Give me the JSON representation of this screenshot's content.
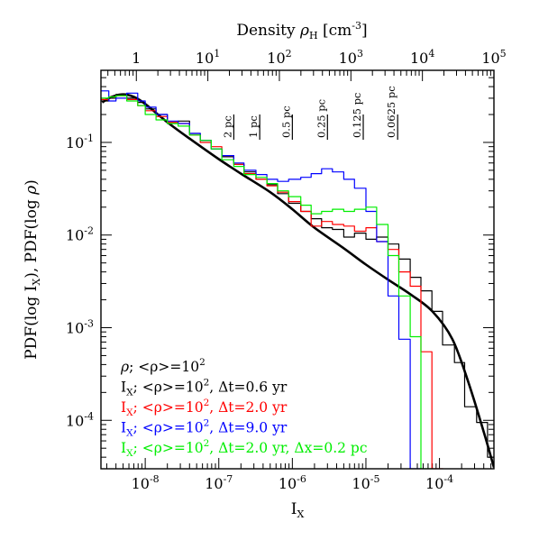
{
  "chart_data": {
    "type": "line",
    "xlabel": "I",
    "xlabel_sub": "X",
    "ylabel_parts": [
      "PDF(log I",
      "X",
      "), PDF(log ",
      "ρ",
      ")"
    ],
    "top_axis_label": "Density ",
    "top_axis_label_symbol": "ρ",
    "top_axis_label_sub": "H",
    "top_axis_unit": " [cm",
    "top_axis_unit_sup": "-3",
    "top_axis_unit_close": "]",
    "x_scale": "log",
    "y_scale": "log",
    "xlim": [
      2.5e-09,
      0.00055
    ],
    "ylim": [
      3e-05,
      0.6
    ],
    "top_xlim": [
      0.32,
      100000
    ],
    "x_ticks": [
      {
        "value": 1e-08,
        "base": "10",
        "exp": "-8"
      },
      {
        "value": 1e-07,
        "base": "10",
        "exp": "-7"
      },
      {
        "value": 1e-06,
        "base": "10",
        "exp": "-6"
      },
      {
        "value": 1e-05,
        "base": "10",
        "exp": "-5"
      },
      {
        "value": 0.0001,
        "base": "10",
        "exp": "-4"
      }
    ],
    "y_ticks": [
      {
        "value": 0.1,
        "base": "10",
        "exp": "-1"
      },
      {
        "value": 0.01,
        "base": "10",
        "exp": "-2"
      },
      {
        "value": 0.001,
        "base": "10",
        "exp": "-3"
      },
      {
        "value": 0.0001,
        "base": "10",
        "exp": "-4"
      }
    ],
    "top_ticks": [
      {
        "value": 1,
        "base": "1",
        "exp": ""
      },
      {
        "value": 10,
        "base": "10",
        "exp": "1"
      },
      {
        "value": 100,
        "base": "10",
        "exp": "2"
      },
      {
        "value": 1000,
        "base": "10",
        "exp": "3"
      },
      {
        "value": 10000,
        "base": "10",
        "exp": "4"
      },
      {
        "value": 100000,
        "base": "10",
        "exp": "5"
      }
    ],
    "scale_markers": [
      {
        "label": "2 pc",
        "x": 1.6e-07
      },
      {
        "label": "1 pc",
        "x": 3.6e-07
      },
      {
        "label": "0.5 pc",
        "x": 1e-06
      },
      {
        "label": "0.25 pc",
        "x": 3e-06
      },
      {
        "label": "0.125 pc",
        "x": 9.2e-06
      },
      {
        "label": "0.0625 pc",
        "x": 2.7e-05
      }
    ],
    "series": [
      {
        "style": "smooth",
        "color": "#000000",
        "width": 2.6,
        "legend": {
          "sym": "ρ",
          "sub": "",
          "text": "; <ρ>=10",
          "sup": "2",
          "tail": ""
        },
        "x": [
          2.6e-09,
          3.5e-09,
          5e-09,
          7e-09,
          1e-08,
          2e-08,
          4e-08,
          1e-07,
          2e-07,
          5e-07,
          1e-06,
          2e-06,
          5e-06,
          1e-05,
          2e-05,
          4e-05,
          8e-05,
          0.00015,
          0.00025,
          0.0004,
          0.00055
        ],
        "y": [
          0.27,
          0.31,
          0.33,
          0.31,
          0.26,
          0.165,
          0.11,
          0.066,
          0.046,
          0.029,
          0.019,
          0.012,
          0.0072,
          0.0048,
          0.0033,
          0.0023,
          0.0015,
          0.00075,
          0.00025,
          7.5e-05,
          3.1e-05
        ]
      },
      {
        "style": "step",
        "color": "#000000",
        "width": 1.2,
        "legend": {
          "sym": "",
          "sub": "X",
          "text": "; <ρ>=10",
          "sup": "2",
          "tail": ", Δt=0.6 yr"
        },
        "x": [
          2.5e-09,
          3.2e-09,
          4e-09,
          5.6e-09,
          7.9e-09,
          1e-08,
          1.4e-08,
          2e-08,
          2.8e-08,
          4e-08,
          5.6e-08,
          7.9e-08,
          1.1e-07,
          1.6e-07,
          2.2e-07,
          3.2e-07,
          4.5e-07,
          6.3e-07,
          8.9e-07,
          1.3e-06,
          1.8e-06,
          2.5e-06,
          3.5e-06,
          5e-06,
          7e-06,
          1e-05,
          1.4e-05,
          2e-05,
          2.8e-05,
          4e-05,
          5.6e-05,
          7.9e-05,
          0.00011,
          0.00016,
          0.00022,
          0.00032,
          0.00045
        ],
        "y": [
          0.28,
          0.3,
          0.33,
          0.3,
          0.27,
          0.23,
          0.2,
          0.16,
          0.17,
          0.125,
          0.105,
          0.085,
          0.07,
          0.058,
          0.048,
          0.04,
          0.035,
          0.028,
          0.022,
          0.018,
          0.015,
          0.012,
          0.0115,
          0.0095,
          0.0105,
          0.009,
          0.0095,
          0.008,
          0.0055,
          0.0035,
          0.0025,
          0.0015,
          0.00065,
          0.00042,
          0.00014,
          9.5e-05,
          4e-05
        ]
      },
      {
        "style": "step",
        "color": "#ff0000",
        "width": 1.2,
        "legend": {
          "sym": "",
          "sub": "X",
          "text": "; <ρ>=10",
          "sup": "2",
          "tail": ", Δt=2.0 yr"
        },
        "x": [
          2.5e-09,
          3.2e-09,
          4e-09,
          5.6e-09,
          7.9e-09,
          1e-08,
          1.4e-08,
          2e-08,
          2.8e-08,
          4e-08,
          5.6e-08,
          7.9e-08,
          1.1e-07,
          1.6e-07,
          2.2e-07,
          3.2e-07,
          4.5e-07,
          6.3e-07,
          8.9e-07,
          1.3e-06,
          1.8e-06,
          2.5e-06,
          3.5e-06,
          5e-06,
          7e-06,
          1e-05,
          1.4e-05,
          2e-05,
          2.8e-05,
          4e-05,
          5.6e-05,
          7.9e-05
        ],
        "y": [
          0.29,
          0.31,
          0.32,
          0.29,
          0.25,
          0.22,
          0.19,
          0.165,
          0.16,
          0.12,
          0.1,
          0.09,
          0.072,
          0.058,
          0.046,
          0.04,
          0.034,
          0.029,
          0.023,
          0.018,
          0.0125,
          0.014,
          0.013,
          0.0125,
          0.011,
          0.012,
          0.0085,
          0.007,
          0.004,
          0.0028,
          0.00055,
          3e-05
        ]
      },
      {
        "style": "step",
        "color": "#0000ff",
        "width": 1.2,
        "legend": {
          "sym": "",
          "sub": "X",
          "text": "; <ρ>=10",
          "sup": "2",
          "tail": ", Δt=9.0 yr"
        },
        "x": [
          2.5e-09,
          3.2e-09,
          4e-09,
          5.6e-09,
          7.9e-09,
          1e-08,
          1.4e-08,
          2e-08,
          2.8e-08,
          4e-08,
          5.6e-08,
          7.9e-08,
          1.1e-07,
          1.6e-07,
          2.2e-07,
          3.2e-07,
          4.5e-07,
          6.3e-07,
          8.9e-07,
          1.3e-06,
          1.8e-06,
          2.5e-06,
          3.5e-06,
          5e-06,
          7e-06,
          1e-05,
          1.4e-05,
          2e-05,
          2.8e-05,
          4e-05
        ],
        "y": [
          0.36,
          0.28,
          0.3,
          0.34,
          0.28,
          0.24,
          0.2,
          0.17,
          0.16,
          0.125,
          0.105,
          0.085,
          0.072,
          0.06,
          0.05,
          0.045,
          0.04,
          0.038,
          0.04,
          0.042,
          0.046,
          0.052,
          0.048,
          0.04,
          0.032,
          0.018,
          0.0085,
          0.0022,
          0.00075,
          3e-05
        ]
      },
      {
        "style": "step",
        "color": "#00ee00",
        "width": 1.2,
        "legend": {
          "sym": "",
          "sub": "X",
          "text": "; <ρ>=10",
          "sup": "2",
          "tail": ", Δt=2.0 yr, Δx=0.2 pc"
        },
        "x": [
          2.5e-09,
          3.2e-09,
          4e-09,
          5.6e-09,
          7.9e-09,
          1e-08,
          1.4e-08,
          2e-08,
          2.8e-08,
          4e-08,
          5.6e-08,
          7.9e-08,
          1.1e-07,
          1.6e-07,
          2.2e-07,
          3.2e-07,
          4.5e-07,
          6.3e-07,
          8.9e-07,
          1.3e-06,
          1.8e-06,
          2.5e-06,
          3.5e-06,
          5e-06,
          7e-06,
          1e-05,
          1.4e-05,
          2e-05,
          2.8e-05,
          4e-05,
          5.6e-05
        ],
        "y": [
          0.3,
          0.31,
          0.32,
          0.28,
          0.25,
          0.2,
          0.175,
          0.16,
          0.15,
          0.12,
          0.105,
          0.085,
          0.065,
          0.055,
          0.045,
          0.042,
          0.036,
          0.03,
          0.026,
          0.021,
          0.017,
          0.018,
          0.019,
          0.018,
          0.019,
          0.02,
          0.013,
          0.006,
          0.0022,
          0.0008,
          3e-05
        ]
      }
    ]
  }
}
